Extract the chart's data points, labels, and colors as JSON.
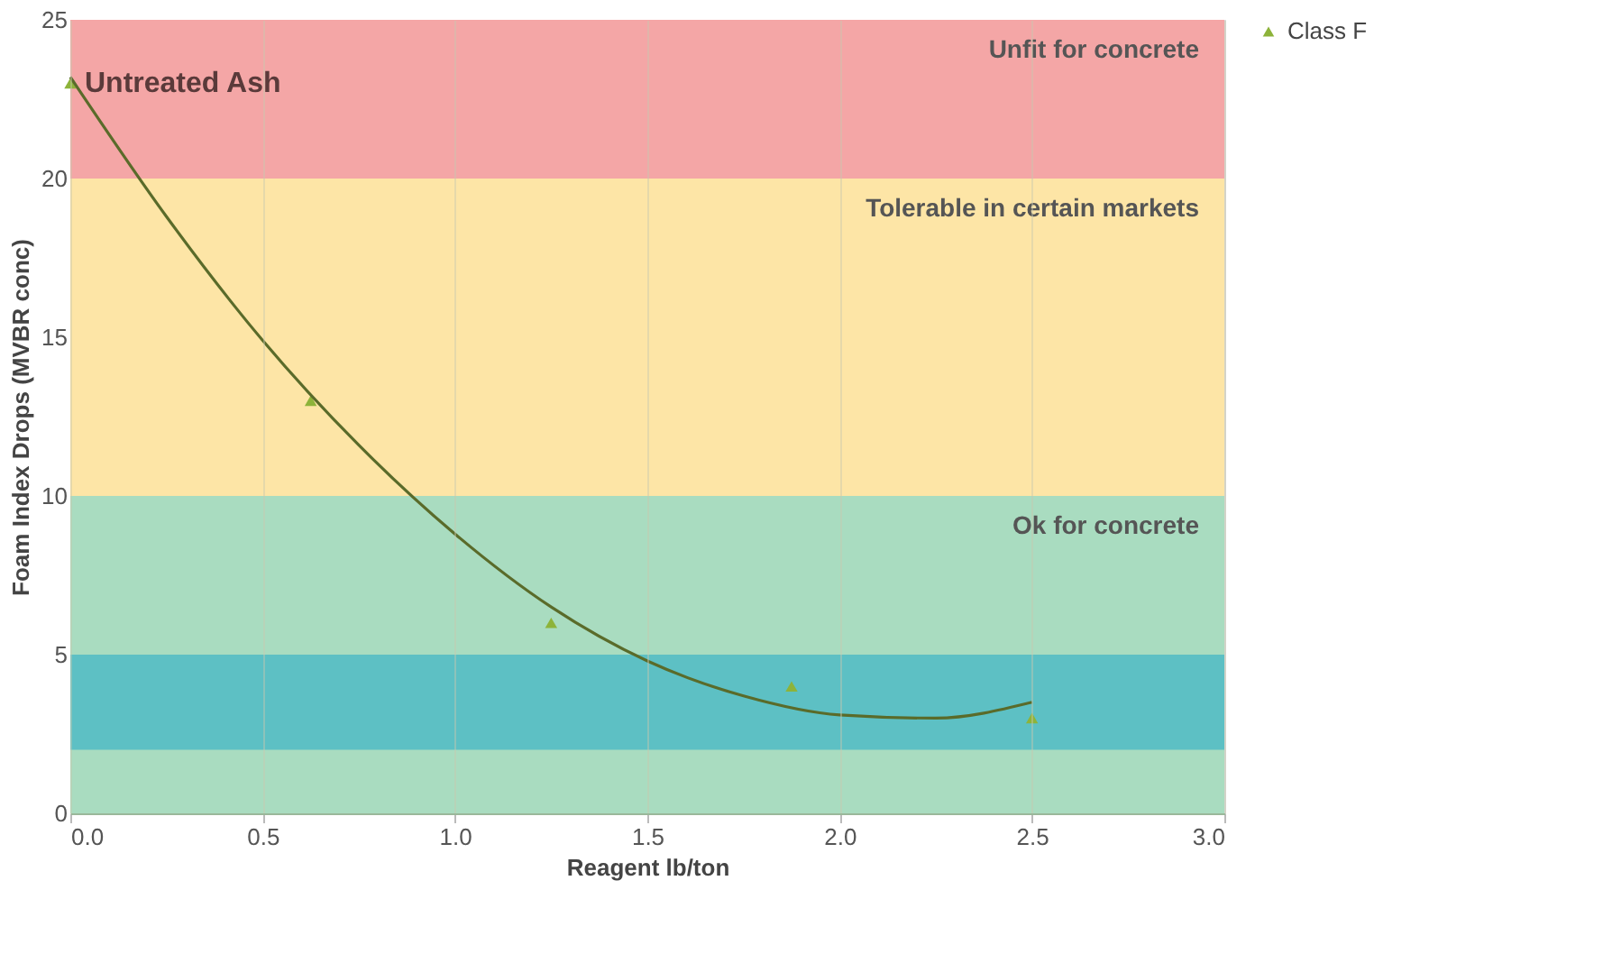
{
  "chart_data": {
    "type": "scatter",
    "xlabel": "Reagent lb/ton",
    "ylabel": "Foam Index Drops (MVBR conc)",
    "xlim": [
      0,
      3
    ],
    "xticks": [
      {
        "value": 0,
        "label": "0.0"
      },
      0.5,
      {
        "value": 1,
        "label": "1.0"
      },
      1.5,
      {
        "value": 2,
        "label": "2.0"
      },
      2.5,
      {
        "value": 3,
        "label": "3.0"
      }
    ],
    "ylim": [
      0,
      25
    ],
    "yticks": [
      0,
      5,
      10,
      15,
      20,
      25
    ],
    "grid": "x",
    "legend": "right",
    "marker": "triangle",
    "series": [
      {
        "name": "Class F",
        "color": "#8db33a",
        "x": [
          0,
          0.625,
          1.25,
          1.875,
          2.5
        ],
        "values": [
          23,
          13,
          6,
          4,
          3
        ]
      },
      {
        "type": "line",
        "color": "#5a6b2a",
        "line_style": "solid",
        "marker": "none",
        "x": [
          0,
          0.25,
          0.5,
          0.75,
          1,
          1.25,
          1.5,
          1.75,
          2,
          2.25,
          2.5
        ],
        "values": [
          23.2,
          18.8,
          14.9,
          11.6,
          8.8,
          6.5,
          4.8,
          3.7,
          3.1,
          3.0,
          3.5
        ]
      }
    ],
    "bands": [
      {
        "axis": "y",
        "from": 20,
        "to": 25,
        "label": "Unfit for concrete",
        "color": "#f4a6a6"
      },
      {
        "axis": "y",
        "from": 10,
        "to": 20,
        "label": "Tolerable in certain markets",
        "color": "#fde5a6"
      },
      {
        "axis": "y",
        "from": 0,
        "to": 10,
        "label": "Ok for concrete",
        "color": "#a9dcc0"
      },
      {
        "axis": "y",
        "from": 2,
        "to": 5,
        "color": "#5dc0c4"
      }
    ],
    "annotations": [
      {
        "text": "Untreated Ash",
        "x": 0,
        "y": 23
      }
    ]
  }
}
